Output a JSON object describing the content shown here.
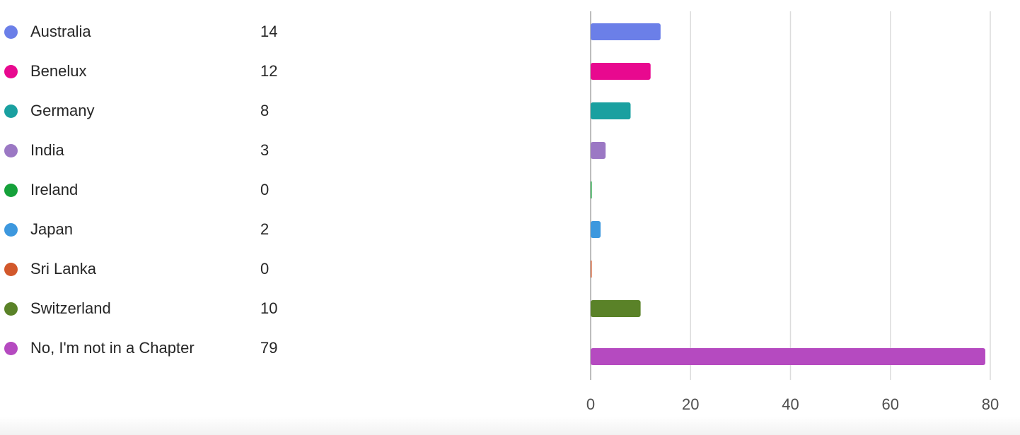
{
  "chart_data": {
    "type": "bar",
    "orientation": "horizontal",
    "categories": [
      "Australia",
      "Benelux",
      "Germany",
      "India",
      "Ireland",
      "Japan",
      "Sri Lanka",
      "Switzerland",
      "No, I'm not in a Chapter"
    ],
    "values": [
      14,
      12,
      8,
      3,
      0,
      2,
      0,
      10,
      79
    ],
    "colors": [
      "#6b7fe8",
      "#e8098f",
      "#1aa0a0",
      "#9b78c4",
      "#15a13a",
      "#3d98de",
      "#d2582b",
      "#5a8228",
      "#b54ac0"
    ],
    "xlim": [
      0,
      80
    ],
    "xticks": [
      0,
      20,
      40,
      60,
      80
    ],
    "grid": true,
    "legend_position": "left"
  }
}
